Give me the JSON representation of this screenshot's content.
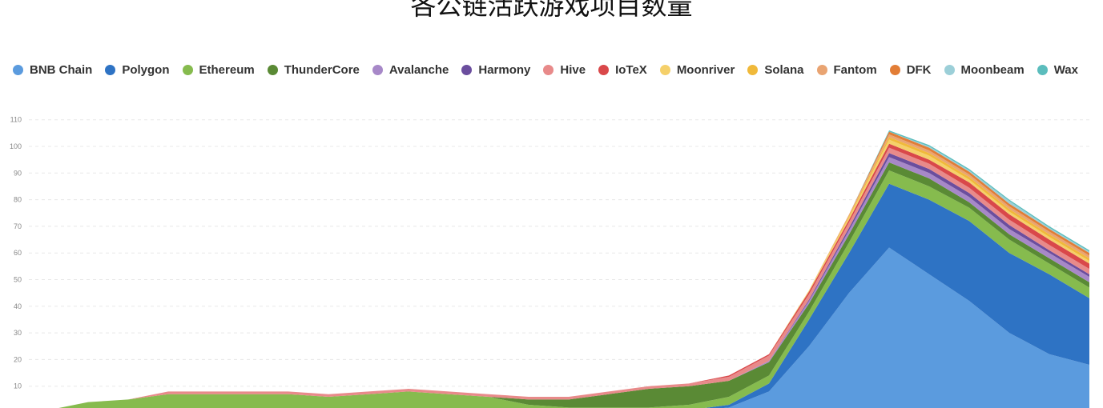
{
  "chart_data": {
    "type": "area",
    "stacked": true,
    "title": "各公链活跃游戏项目数量",
    "xlabel": "",
    "ylabel": "",
    "ylim": [
      0,
      115
    ],
    "yticks": [
      10,
      20,
      30,
      40,
      50,
      60,
      70,
      80,
      90,
      100,
      110
    ],
    "grid": true,
    "legend": "top",
    "x": [
      0,
      1,
      2,
      3,
      4,
      5,
      6,
      7,
      8,
      9,
      10,
      11,
      12,
      13,
      14,
      15,
      16,
      17,
      18,
      19,
      20,
      21,
      22,
      23,
      24,
      25,
      26
    ],
    "series": [
      {
        "name": "BNB Chain",
        "color": "#5b9bde",
        "values": [
          0,
          0,
          0,
          0,
          0,
          0,
          0,
          0,
          0,
          0,
          0,
          0,
          0,
          0,
          0,
          0,
          0.5,
          2,
          8,
          25,
          45,
          62,
          52,
          42,
          30,
          22,
          18
        ]
      },
      {
        "name": "Polygon",
        "color": "#2e73c4",
        "values": [
          0,
          0,
          0,
          0,
          0,
          0,
          0,
          0,
          0,
          0,
          0,
          0,
          0,
          0,
          0,
          0,
          0.5,
          1,
          3,
          10,
          15,
          24,
          28,
          30,
          30,
          30,
          25
        ]
      },
      {
        "name": "Ethereum",
        "color": "#86bb4e",
        "values": [
          1,
          4,
          5,
          7,
          7,
          7,
          7,
          6,
          7,
          8,
          7,
          6,
          3,
          2,
          2,
          2,
          2,
          3,
          3,
          3,
          4,
          5,
          5,
          5,
          5,
          4,
          4
        ]
      },
      {
        "name": "ThunderCore",
        "color": "#5a8a35",
        "values": [
          0,
          0,
          0,
          0,
          0,
          0,
          0,
          0,
          0,
          0,
          0,
          0,
          2,
          3,
          5,
          7,
          7,
          6,
          5,
          3,
          3,
          3,
          3,
          2,
          2,
          2,
          2
        ]
      },
      {
        "name": "Avalanche",
        "color": "#a788c8",
        "values": [
          0,
          0,
          0,
          0,
          0,
          0,
          0,
          0,
          0,
          0,
          0,
          0,
          0,
          0,
          0,
          0,
          0,
          0,
          0.5,
          1,
          1.5,
          2,
          2,
          2,
          2,
          2,
          2
        ]
      },
      {
        "name": "Harmony",
        "color": "#6b4e9e",
        "values": [
          0,
          0,
          0,
          0,
          0,
          0,
          0,
          0,
          0,
          0,
          0,
          0,
          0,
          0,
          0,
          0,
          0,
          0,
          0,
          0.5,
          1,
          1.5,
          1.5,
          1.5,
          1.5,
          1,
          1
        ]
      },
      {
        "name": "Hive",
        "color": "#e88a8a",
        "values": [
          0,
          0,
          0,
          1,
          1,
          1,
          1,
          1,
          1,
          1,
          1,
          1,
          1,
          1,
          1,
          1,
          1,
          1.5,
          2,
          2,
          2,
          2,
          2,
          2,
          2,
          2,
          2
        ]
      },
      {
        "name": "IoTeX",
        "color": "#d9484a",
        "values": [
          0,
          0,
          0,
          0,
          0,
          0,
          0,
          0,
          0,
          0,
          0,
          0,
          0,
          0,
          0,
          0,
          0,
          0.5,
          0.5,
          1,
          1,
          1.5,
          1.5,
          2,
          2,
          2,
          2
        ]
      },
      {
        "name": "Moonriver",
        "color": "#f5d06a",
        "values": [
          0,
          0,
          0,
          0,
          0,
          0,
          0,
          0,
          0,
          0,
          0,
          0,
          0,
          0,
          0,
          0,
          0,
          0,
          0,
          0.5,
          1,
          1.5,
          1.5,
          1,
          1,
          1,
          1
        ]
      },
      {
        "name": "Solana",
        "color": "#f0b93a",
        "values": [
          0,
          0,
          0,
          0,
          0,
          0,
          0,
          0,
          0,
          0,
          0,
          0,
          0,
          0,
          0,
          0,
          0,
          0,
          0,
          0,
          0.5,
          1,
          1,
          1,
          1,
          1,
          1
        ]
      },
      {
        "name": "Fantom",
        "color": "#e9a472",
        "values": [
          0,
          0,
          0,
          0,
          0,
          0,
          0,
          0,
          0,
          0,
          0,
          0,
          0,
          0,
          0,
          0,
          0,
          0,
          0,
          0,
          0.5,
          1,
          1,
          1,
          1,
          1,
          1
        ]
      },
      {
        "name": "DFK",
        "color": "#e27d36",
        "values": [
          0,
          0,
          0,
          0,
          0,
          0,
          0,
          0,
          0,
          0,
          0,
          0,
          0,
          0,
          0,
          0,
          0,
          0,
          0,
          0,
          0,
          1,
          1,
          1,
          1,
          1,
          1
        ]
      },
      {
        "name": "Moonbeam",
        "color": "#9ccfd8",
        "values": [
          0,
          0,
          0,
          0,
          0,
          0,
          0,
          0,
          0,
          0,
          0,
          0,
          0,
          0,
          0,
          0,
          0,
          0,
          0,
          0,
          0,
          0,
          0.5,
          0.5,
          1,
          0.5,
          0.5
        ]
      },
      {
        "name": "Wax",
        "color": "#5bbdbd",
        "values": [
          0,
          0,
          0,
          0,
          0,
          0,
          0,
          0,
          0,
          0,
          0,
          0,
          0,
          0,
          0,
          0,
          0,
          0,
          0,
          0,
          0,
          0.5,
          0.5,
          0.5,
          0.5,
          0.5,
          0.5
        ]
      }
    ]
  }
}
